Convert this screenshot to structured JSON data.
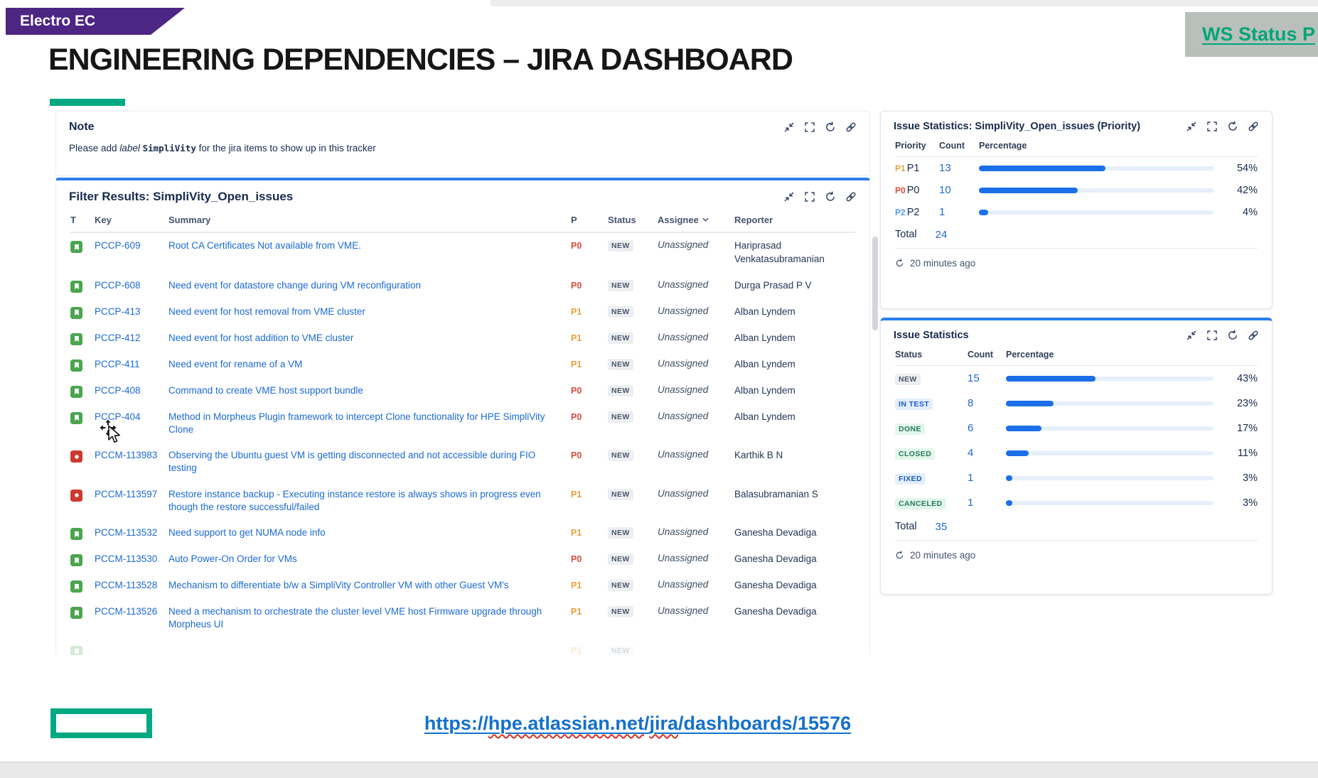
{
  "slide": {
    "banner_label": "Electro EC",
    "title": "ENGINEERING DEPENDENCIES – JIRA DASHBOARD",
    "ws_link_label": "WS Status P",
    "footer_url": {
      "prefix": "https://",
      "squiggle1": "hpe.atlassian.net",
      "slash": "/",
      "squiggle2": "jira",
      "suffix": "/dashboards/15576"
    }
  },
  "note": {
    "title": "Note",
    "body_prefix": "Please add ",
    "body_italic": "label ",
    "body_code": "SimpliVity",
    "body_suffix": " for the jira items to show up in this tracker"
  },
  "panel_icons": [
    "collapse-icon",
    "expand-icon",
    "refresh-icon",
    "link-icon"
  ],
  "filter_results": {
    "title": "Filter Results: SimpliVity_Open_issues",
    "columns": [
      "T",
      "Key",
      "Summary",
      "P",
      "Status",
      "Assignee",
      "Reporter"
    ],
    "rows": [
      {
        "type": "story",
        "key": "PCCP-609",
        "summary": "Root CA Certificates Not available from VME.",
        "priority": "P0",
        "status": "NEW",
        "status_style": "gray",
        "assignee": "Unassigned",
        "reporter": "Hariprasad Venkatasubramanian"
      },
      {
        "type": "story",
        "key": "PCCP-608",
        "summary": "Need event for datastore change during VM reconfiguration",
        "priority": "P0",
        "status": "NEW",
        "status_style": "gray",
        "assignee": "Unassigned",
        "reporter": "Durga Prasad P V"
      },
      {
        "type": "story",
        "key": "PCCP-413",
        "summary": "Need event for host removal from VME cluster",
        "priority": "P1",
        "status": "NEW",
        "status_style": "gray",
        "assignee": "Unassigned",
        "reporter": "Alban Lyndem"
      },
      {
        "type": "story",
        "key": "PCCP-412",
        "summary": "Need event for host addition to VME cluster",
        "priority": "P1",
        "status": "NEW",
        "status_style": "gray",
        "assignee": "Unassigned",
        "reporter": "Alban Lyndem"
      },
      {
        "type": "story",
        "key": "PCCP-411",
        "summary": "Need event for rename of a VM",
        "priority": "P1",
        "status": "NEW",
        "status_style": "gray",
        "assignee": "Unassigned",
        "reporter": "Alban Lyndem"
      },
      {
        "type": "story",
        "key": "PCCP-408",
        "summary": "Command to create VME host support bundle",
        "priority": "P0",
        "status": "NEW",
        "status_style": "gray",
        "assignee": "Unassigned",
        "reporter": "Alban Lyndem"
      },
      {
        "type": "story",
        "key": "PCCP-404",
        "summary": "Method in Morpheus Plugin framework to intercept Clone functionality for HPE SimpliVity Clone",
        "priority": "P0",
        "status": "NEW",
        "status_style": "gray",
        "assignee": "Unassigned",
        "reporter": "Alban Lyndem"
      },
      {
        "type": "bug",
        "key": "PCCM-113983",
        "summary": "Observing the Ubuntu guest VM is getting disconnected and not accessible during FIO testing",
        "priority": "P0",
        "status": "NEW",
        "status_style": "gray",
        "assignee": "Unassigned",
        "reporter": "Karthik B N"
      },
      {
        "type": "bug",
        "key": "PCCM-113597",
        "summary": "Restore instance backup - Executing instance restore is always shows in progress even though the restore successful/failed",
        "priority": "P1",
        "status": "NEW",
        "status_style": "gray",
        "assignee": "Unassigned",
        "reporter": "Balasubramanian S"
      },
      {
        "type": "story",
        "key": "PCCM-113532",
        "summary": "Need support to get NUMA node info",
        "priority": "P1",
        "status": "NEW",
        "status_style": "gray",
        "assignee": "Unassigned",
        "reporter": "Ganesha Devadiga"
      },
      {
        "type": "story",
        "key": "PCCM-113530",
        "summary": "Auto Power-On Order for VMs",
        "priority": "P0",
        "status": "NEW",
        "status_style": "gray",
        "assignee": "Unassigned",
        "reporter": "Ganesha Devadiga"
      },
      {
        "type": "story",
        "key": "PCCM-113528",
        "summary": "Mechanism to differentiate b/w a SimpliVity Controller VM with other Guest VM's",
        "priority": "P1",
        "status": "NEW",
        "status_style": "gray",
        "assignee": "Unassigned",
        "reporter": "Ganesha Devadiga"
      },
      {
        "type": "story",
        "key": "PCCM-113526",
        "summary": "Need a mechanism to orchestrate the cluster level VME host Firmware upgrade through Morpheus UI",
        "priority": "P1",
        "status": "NEW",
        "status_style": "gray",
        "assignee": "Unassigned",
        "reporter": "Ganesha Devadiga"
      },
      {
        "type": "story",
        "key": "",
        "summary": "",
        "priority": "P1",
        "status": "NEW",
        "status_style": "gray",
        "assignee": "",
        "reporter": "",
        "faded": true
      }
    ]
  },
  "priority_stats": {
    "title": "Issue Statistics: SimpliVity_Open_issues (Priority)",
    "columns": [
      "Priority",
      "Count",
      "Percentage"
    ],
    "rows": [
      {
        "label": "P1",
        "count": 13,
        "percent": 54
      },
      {
        "label": "P0",
        "count": 10,
        "percent": 42
      },
      {
        "label": "P2",
        "count": 1,
        "percent": 4
      }
    ],
    "total_label": "Total",
    "total": 24,
    "updated": "20 minutes ago"
  },
  "status_stats": {
    "title": "Issue Statistics",
    "columns": [
      "Status",
      "Count",
      "Percentage"
    ],
    "rows": [
      {
        "label": "NEW",
        "style": "gray",
        "count": 15,
        "percent": 43
      },
      {
        "label": "IN TEST",
        "style": "blue",
        "count": 8,
        "percent": 23
      },
      {
        "label": "DONE",
        "style": "green",
        "count": 6,
        "percent": 17
      },
      {
        "label": "CLOSED",
        "style": "green",
        "count": 4,
        "percent": 11
      },
      {
        "label": "FIXED",
        "style": "blue",
        "count": 1,
        "percent": 3
      },
      {
        "label": "CANCELED",
        "style": "green",
        "count": 1,
        "percent": 3
      }
    ],
    "total_label": "Total",
    "total": 35,
    "updated": "20 minutes ago"
  },
  "colors": {
    "priority": {
      "P0": "#DE4A3C",
      "P1": "#E8A13C",
      "P2": "#4C9AFF"
    },
    "bar_fill": "#1D6FE8",
    "bar_track": "#E6EFFB",
    "accent_blue": "#2E7EF0",
    "hpe_green": "#01A982",
    "brand_purple": "#4D2583",
    "link_blue": "#1B6AD6",
    "url_blue": "#1470CC",
    "ws_green": "#00A678"
  }
}
